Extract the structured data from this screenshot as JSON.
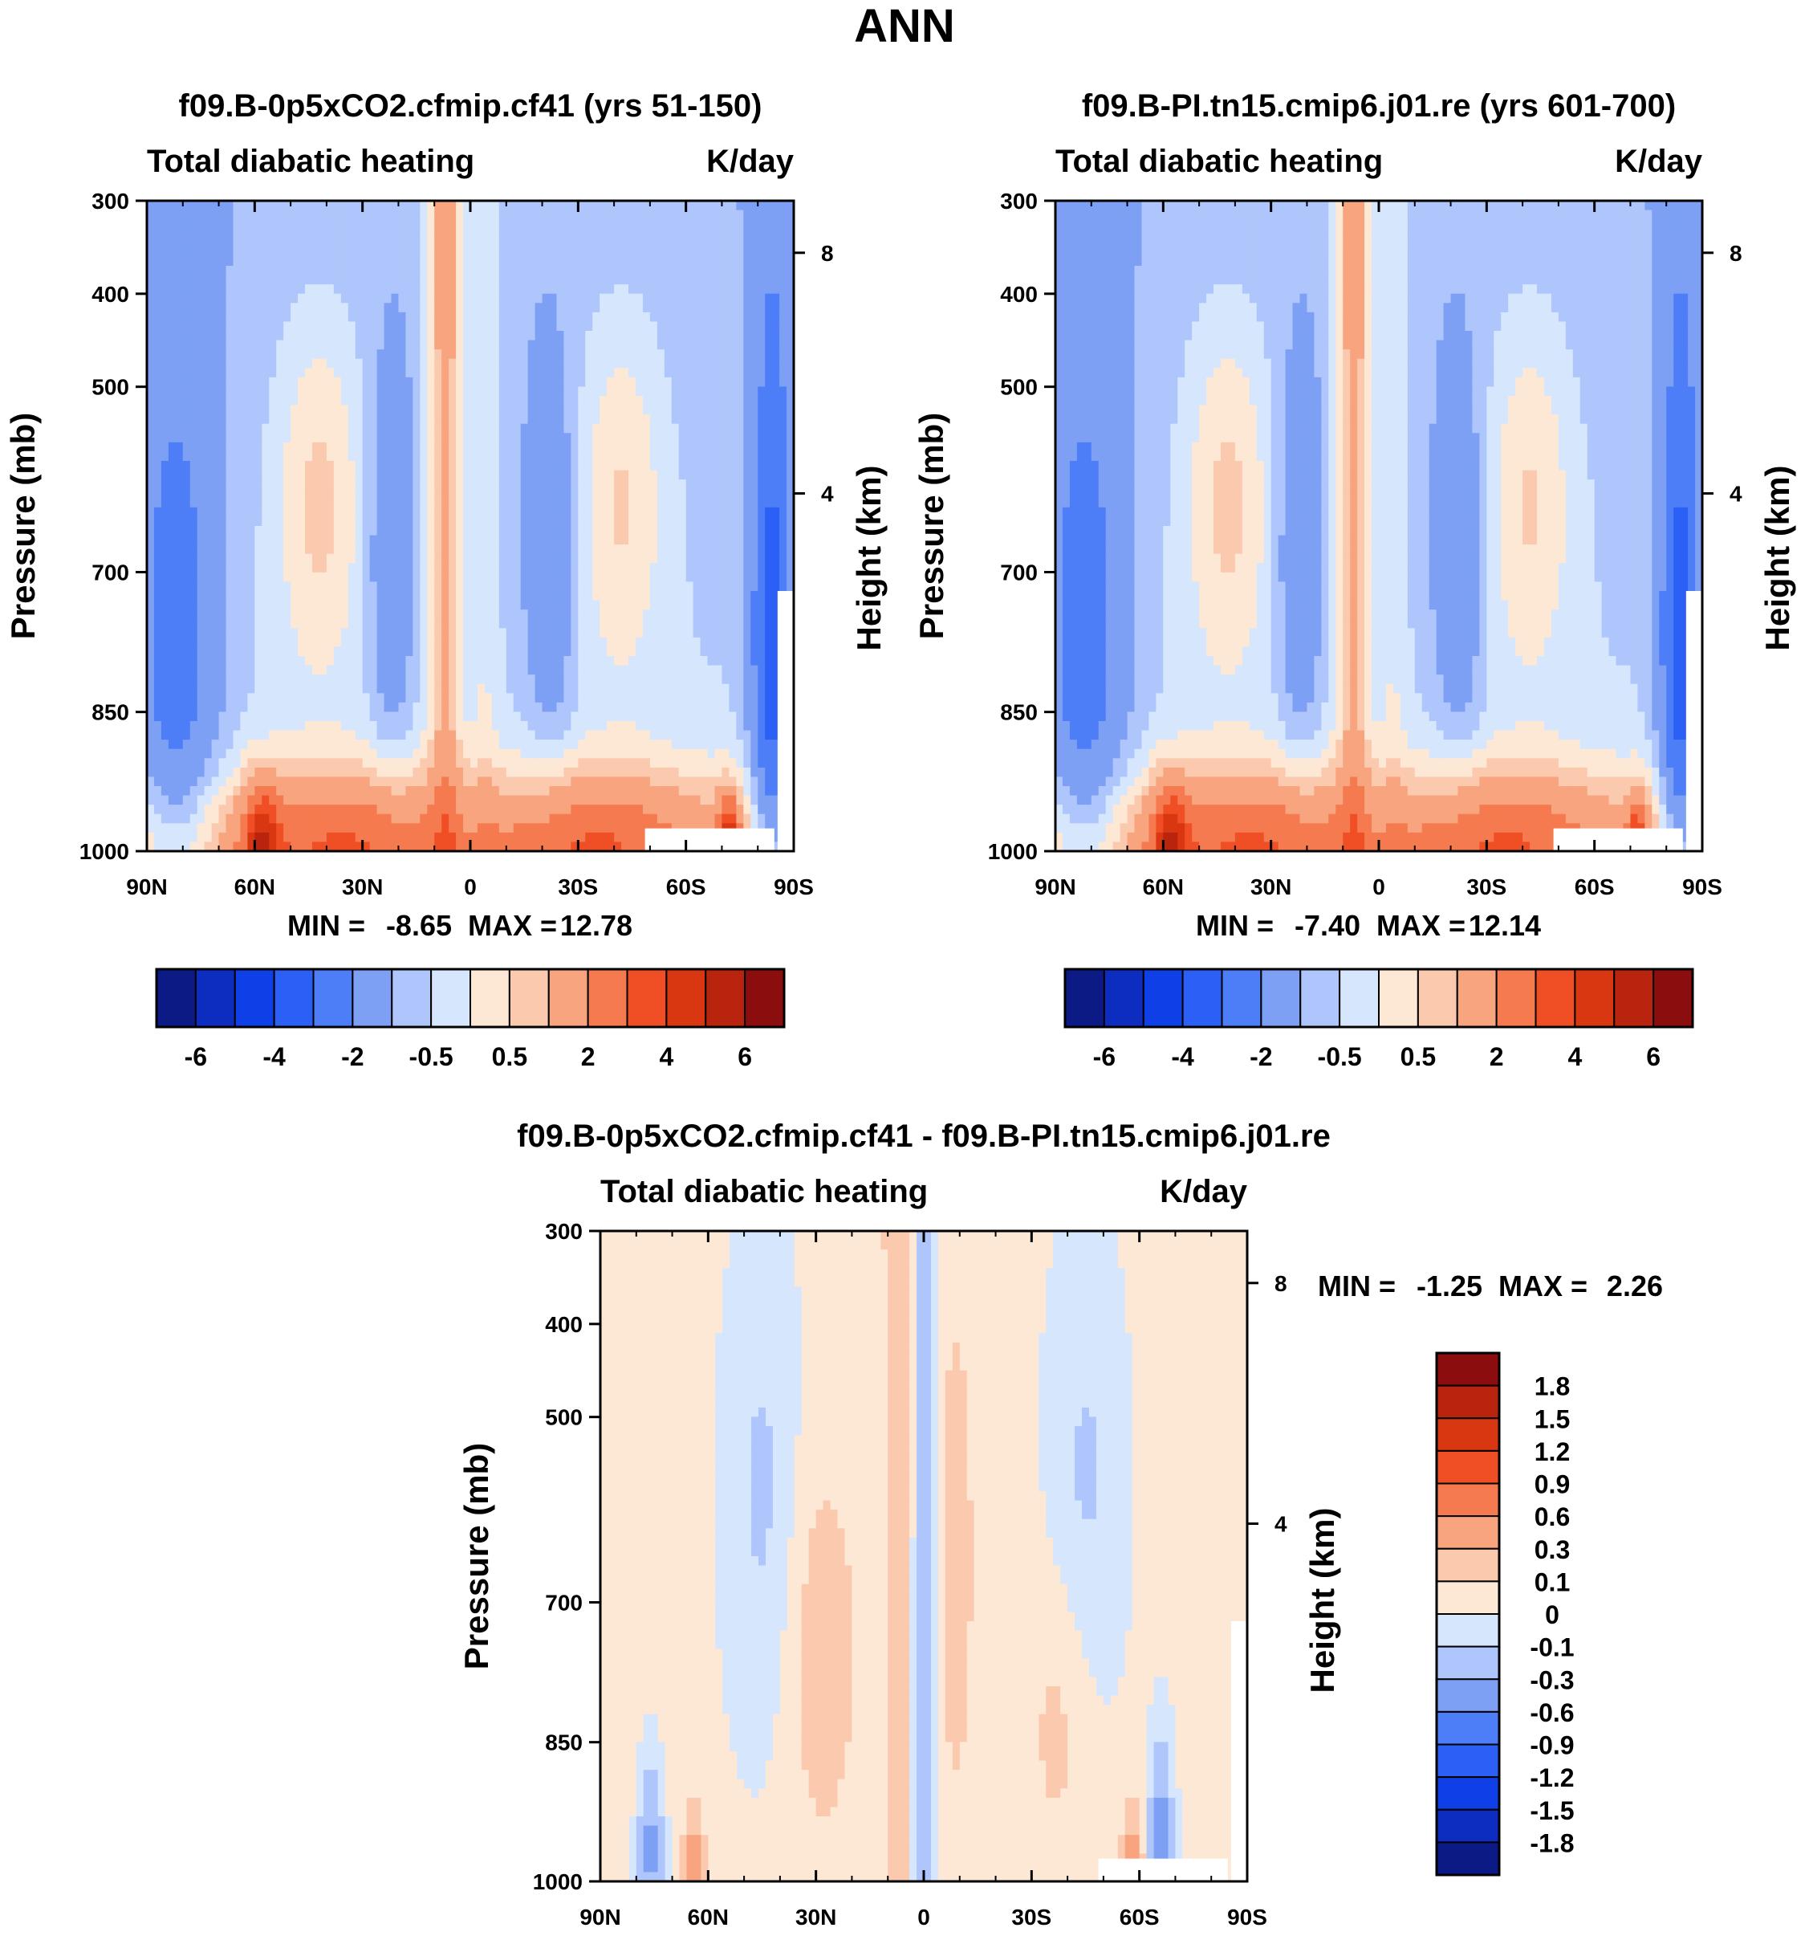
{
  "figure": {
    "season": "ANN"
  },
  "colors": {
    "main_scale": [
      "#0b1a85",
      "#0d2dc0",
      "#0f3fe6",
      "#2b5ff5",
      "#4d7ef7",
      "#7da0f5",
      "#aec6fb",
      "#d6e6fd",
      "#fde8d6",
      "#fbc9ae",
      "#f7a47f",
      "#f57a4f",
      "#f04f25",
      "#d83712",
      "#b8240e",
      "#8b0d0d"
    ],
    "diff_scale": [
      "#0b1a85",
      "#0d2dc0",
      "#0f3fe6",
      "#2b5ff5",
      "#4d7ef7",
      "#7da0f5",
      "#aec6fb",
      "#d6e6fd",
      "#fde8d6",
      "#fbc9ae",
      "#f7a47f",
      "#f57a4f",
      "#f04f25",
      "#d83712",
      "#b8240e",
      "#8b0d0d"
    ]
  },
  "chart_data": [
    {
      "type": "heatmap",
      "id": "panel-a",
      "title": "f09.B-0p5xCO2.cfmip.cf41 (yrs 51-150)",
      "left_string": "Total diabatic heating",
      "right_string": "K/day",
      "ylabel": "Pressure (mb)",
      "ylabel_right": "Height (km)",
      "x_ticks": [
        "90N",
        "60N",
        "30N",
        "0",
        "30S",
        "60S",
        "90S"
      ],
      "x_range": [
        90,
        -90
      ],
      "y_ticks": [
        "300",
        "400",
        "500",
        "700",
        "850",
        "1000"
      ],
      "y_range": [
        300,
        1000
      ],
      "y_right_ticks": [
        "8",
        "4"
      ],
      "min_label": "MIN =",
      "min_value": "-8.65",
      "max_label": "MAX =",
      "max_value": "12.78",
      "colorbar_labels": [
        "-6",
        "-4",
        "-2",
        "-0.5",
        "0.5",
        "2",
        "4",
        "6"
      ]
    },
    {
      "type": "heatmap",
      "id": "panel-b",
      "title": "f09.B-PI.tn15.cmip6.j01.re (yrs 601-700)",
      "left_string": "Total diabatic heating",
      "right_string": "K/day",
      "ylabel": "Pressure (mb)",
      "ylabel_right": "Height (km)",
      "x_ticks": [
        "90N",
        "60N",
        "30N",
        "0",
        "30S",
        "60S",
        "90S"
      ],
      "x_range": [
        90,
        -90
      ],
      "y_ticks": [
        "300",
        "400",
        "500",
        "700",
        "850",
        "1000"
      ],
      "y_range": [
        300,
        1000
      ],
      "y_right_ticks": [
        "8",
        "4"
      ],
      "min_label": "MIN =",
      "min_value": "-7.40",
      "max_label": "MAX =",
      "max_value": "12.14",
      "colorbar_labels": [
        "-6",
        "-4",
        "-2",
        "-0.5",
        "0.5",
        "2",
        "4",
        "6"
      ]
    },
    {
      "type": "heatmap",
      "id": "panel-diff",
      "title": "f09.B-0p5xCO2.cfmip.cf41 - f09.B-PI.tn15.cmip6.j01.re",
      "left_string": "Total diabatic heating",
      "right_string": "K/day",
      "ylabel": "Pressure (mb)",
      "ylabel_right": "Height (km)",
      "x_ticks": [
        "90N",
        "60N",
        "30N",
        "0",
        "30S",
        "60S",
        "90S"
      ],
      "x_range": [
        90,
        -90
      ],
      "y_ticks": [
        "300",
        "400",
        "500",
        "700",
        "850",
        "1000"
      ],
      "y_range": [
        300,
        1000
      ],
      "y_right_ticks": [
        "8",
        "4"
      ],
      "min_label": "MIN =",
      "min_value": "-1.25",
      "max_label": "MAX =",
      "max_value": "2.26",
      "colorbar_labels": [
        "1.8",
        "1.5",
        "1.2",
        "0.9",
        "0.6",
        "0.3",
        "0.1",
        "0",
        "-0.1",
        "-0.3",
        "-0.6",
        "-0.9",
        "-1.2",
        "-1.5",
        "-1.8"
      ]
    }
  ]
}
